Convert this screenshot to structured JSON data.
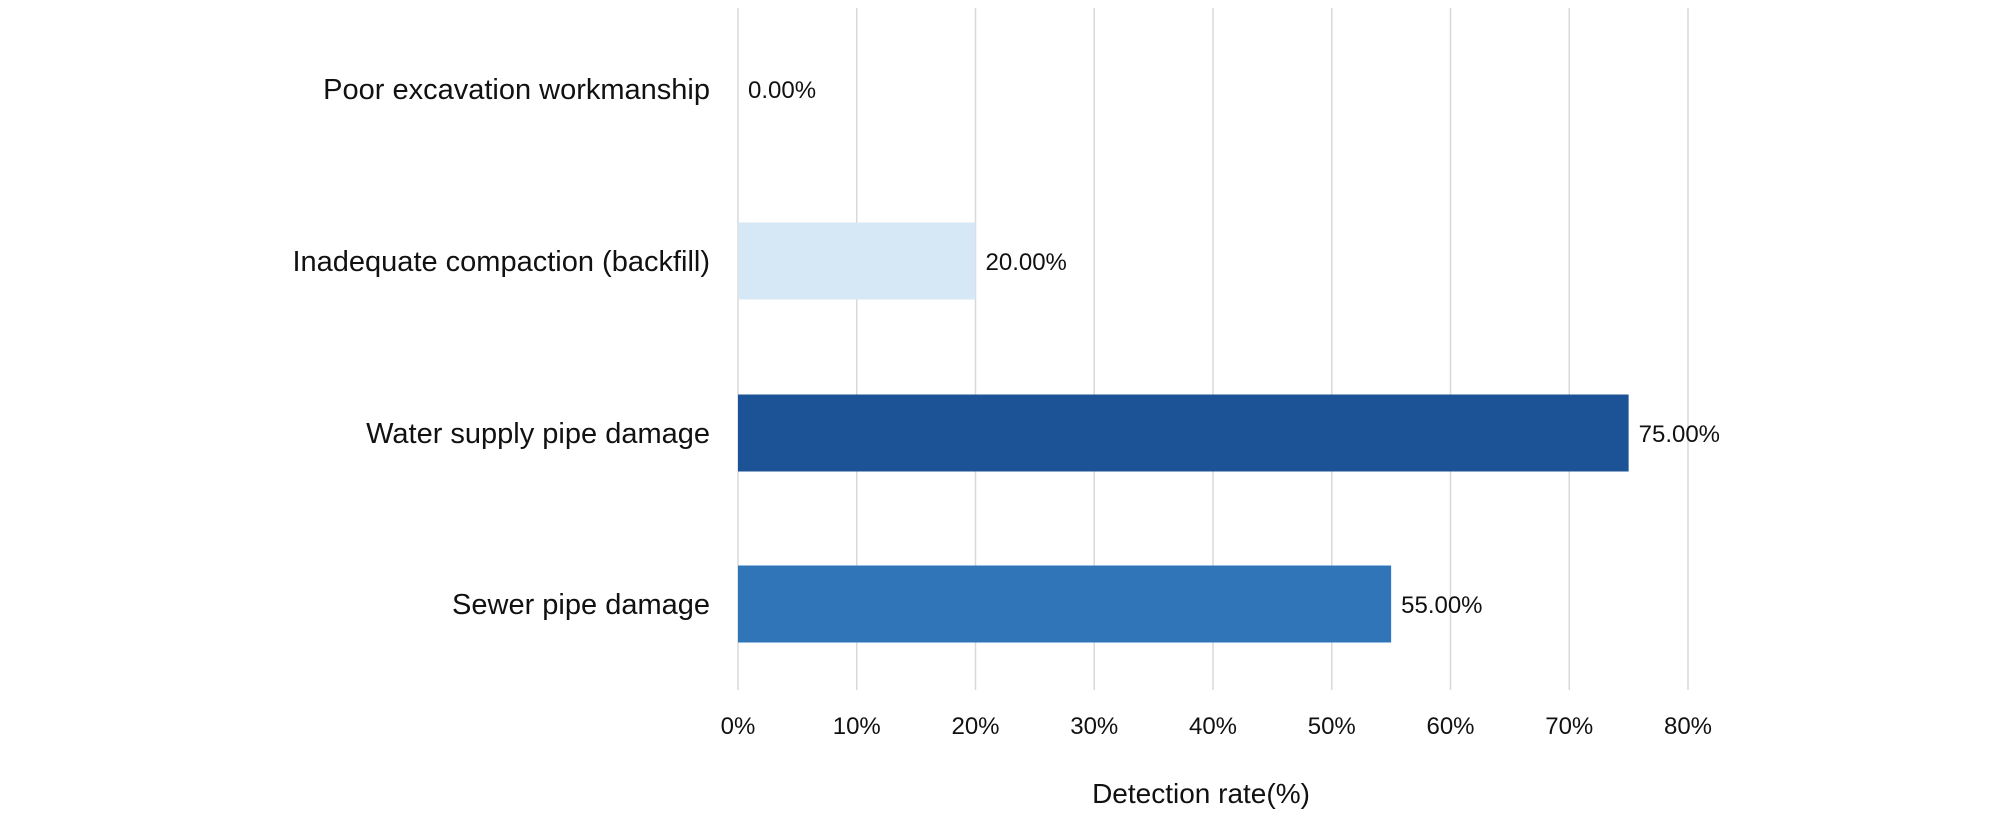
{
  "chart_data": {
    "type": "bar",
    "orientation": "horizontal",
    "categories": [
      "Poor excavation workmanship",
      "Inadequate compaction (backfill)",
      "Water supply pipe damage",
      "Sewer pipe damage"
    ],
    "values": [
      0,
      20,
      75,
      55
    ],
    "data_labels": [
      "0.00%",
      "20.00%",
      "75.00%",
      "55.00%"
    ],
    "bar_colors": [
      "#d6e8f5",
      "#d6e8f5",
      "#1c5396",
      "#2f75b8"
    ],
    "xlabel": "Detection rate(%)",
    "xlim": [
      0,
      80
    ],
    "x_ticks": [
      0,
      10,
      20,
      30,
      40,
      50,
      60,
      70,
      80
    ],
    "x_tick_labels": [
      "0%",
      "10%",
      "20%",
      "30%",
      "40%",
      "50%",
      "60%",
      "70%",
      "80%"
    ],
    "grid": "vertical",
    "legend": "none"
  }
}
